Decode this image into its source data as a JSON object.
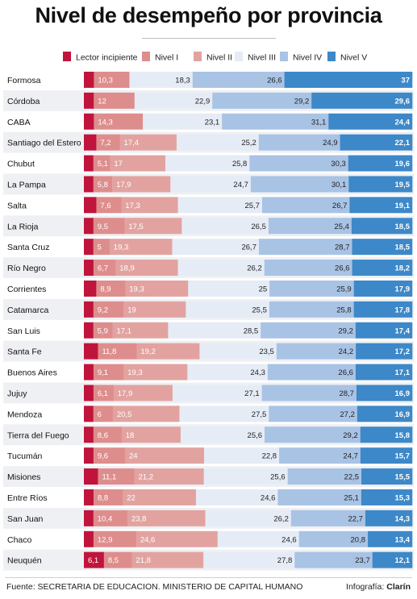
{
  "colors": {
    "lector_incipiente": "#c0143c",
    "nivel_i": "#de8d8d",
    "nivel_ii": "#e2a3a0",
    "nivel_iii": "#e6ecf6",
    "nivel_iv": "#a9c3e5",
    "nivel_v": "#3d88c8",
    "row_alt": "#eef0f3"
  },
  "chart_data": {
    "type": "bar",
    "orientation": "horizontal",
    "stacked": true,
    "title": "Nivel de desempeño por provincia",
    "legend_position": "top",
    "categories": [
      "Formosa",
      "Córdoba",
      "CABA",
      "Santiago del Estero",
      "Chubut",
      "La Pampa",
      "Salta",
      "La Rioja",
      "Santa Cruz",
      "Río Negro",
      "Corrientes",
      "Catamarca",
      "San Luis",
      "Santa Fe",
      "Buenos Aires",
      "Jujuy",
      "Mendoza",
      "Tierra del Fuego",
      "Tucumán",
      "Misiones",
      "Entre Ríos",
      "San Juan",
      "Chaco",
      "Neuquén"
    ],
    "series": [
      {
        "name": "Lector incipiente",
        "label_values": [
          "",
          "",
          "",
          "",
          "",
          "",
          "",
          "",
          "",
          "",
          "",
          "",
          "",
          "",
          "",
          "",
          "",
          "",
          "",
          "",
          "",
          "",
          "",
          "6,1"
        ],
        "values": [
          2.9,
          2.9,
          2.9,
          3.8,
          2.9,
          2.9,
          3.8,
          2.9,
          2.9,
          2.9,
          3.8,
          2.9,
          2.9,
          4.3,
          2.9,
          2.9,
          2.9,
          2.9,
          2.9,
          4.3,
          2.9,
          2.9,
          2.9,
          6.1
        ]
      },
      {
        "name": "Nivel I",
        "label_values": [
          "10,3",
          "12",
          "14,3",
          "7,2",
          "5,1",
          "5,8",
          "7,6",
          "9,5",
          "5",
          "6,7",
          "8,9",
          "9,2",
          "5,9",
          "11,8",
          "9,1",
          "6,1",
          "6",
          "8,6",
          "9,6",
          "11,1",
          "8,8",
          "10,4",
          "12,9",
          "8,5"
        ],
        "values": [
          10.3,
          12,
          14.3,
          7.2,
          5.1,
          5.8,
          7.6,
          9.5,
          5,
          6.7,
          8.9,
          9.2,
          5.9,
          11.8,
          9.1,
          6.1,
          6,
          8.6,
          9.6,
          11.1,
          8.8,
          10.4,
          12.9,
          8.5
        ]
      },
      {
        "name": "Nivel II",
        "label_values": [
          "",
          "",
          "",
          "17,4",
          "17",
          "17,9",
          "17,3",
          "17,5",
          "19,3",
          "18,9",
          "19,3",
          "19",
          "17,1",
          "19,2",
          "19,3",
          "17,9",
          "20,5",
          "18",
          "24",
          "21,2",
          "22",
          "23,8",
          "24,6",
          "21,8"
        ],
        "values": [
          0,
          0,
          0,
          17.4,
          17,
          17.9,
          17.3,
          17.5,
          19.3,
          18.9,
          19.3,
          19,
          17.1,
          19.2,
          19.3,
          17.9,
          20.5,
          18,
          24,
          21.2,
          22,
          23.8,
          24.6,
          21.8
        ]
      },
      {
        "name": "Nivel III",
        "label_values": [
          "18,3",
          "22,9",
          "23,1",
          "25,2",
          "25,8",
          "24,7",
          "25,7",
          "26,5",
          "26,7",
          "26,2",
          "25",
          "25,5",
          "28,5",
          "23,5",
          "24,3",
          "27,1",
          "27,5",
          "25,6",
          "22,8",
          "25,6",
          "24,6",
          "26,2",
          "24,6",
          "27,8"
        ],
        "values": [
          18.3,
          22.9,
          23.1,
          25.2,
          25.8,
          24.7,
          25.7,
          26.5,
          26.7,
          26.2,
          25,
          25.5,
          28.5,
          23.5,
          24.3,
          27.1,
          27.5,
          25.6,
          22.8,
          25.6,
          24.6,
          26.2,
          24.6,
          27.8
        ]
      },
      {
        "name": "Nivel IV",
        "label_values": [
          "26,6",
          "29,2",
          "31,1",
          "24,9",
          "30,3",
          "30,1",
          "26,7",
          "25,4",
          "28,7",
          "26,6",
          "25,9",
          "25,8",
          "29,2",
          "24,2",
          "26,6",
          "28,7",
          "27,2",
          "29,2",
          "24,7",
          "22,5",
          "25,1",
          "22,7",
          "20,8",
          "23,7"
        ],
        "values": [
          26.6,
          29.2,
          31.1,
          24.9,
          30.3,
          30.1,
          26.7,
          25.4,
          28.7,
          26.6,
          25.9,
          25.8,
          29.2,
          24.2,
          26.6,
          28.7,
          27.2,
          29.2,
          24.7,
          22.5,
          25.1,
          22.7,
          20.8,
          23.7
        ]
      },
      {
        "name": "Nivel V",
        "label_values": [
          "37",
          "29,6",
          "24,4",
          "22,1",
          "19,6",
          "19,5",
          "19,1",
          "18,5",
          "18,5",
          "18,2",
          "17,9",
          "17,8",
          "17,4",
          "17,2",
          "17,1",
          "16,9",
          "16,9",
          "15,8",
          "15,7",
          "15,5",
          "15,3",
          "14,3",
          "13,4",
          "12,1"
        ],
        "values": [
          37,
          29.6,
          24.4,
          22.1,
          19.6,
          19.5,
          19.1,
          18.5,
          18.5,
          18.2,
          17.9,
          17.8,
          17.4,
          17.2,
          17.1,
          16.9,
          16.9,
          15.8,
          15.7,
          15.5,
          15.3,
          14.3,
          13.4,
          12.1
        ]
      }
    ]
  },
  "footer": {
    "source": "Fuente: SECRETARIA DE EDUCACION. MINISTERIO DE CAPITAL HUMANO",
    "credit_prefix": "Infografía:",
    "credit_name": "Clarín"
  }
}
